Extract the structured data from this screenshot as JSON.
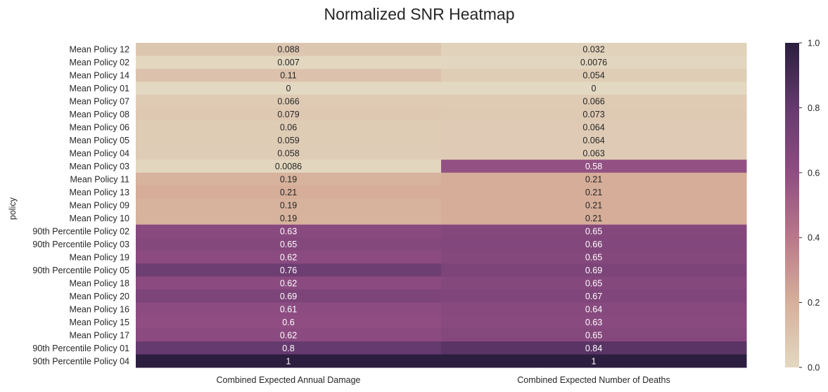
{
  "chart_data": {
    "type": "heatmap",
    "title": "Normalized SNR Heatmap",
    "xlabel": "",
    "ylabel": "policy",
    "columns": [
      "Combined Expected Annual Damage",
      "Combined Expected Number of Deaths"
    ],
    "rows": [
      "Mean Policy 12",
      "Mean Policy 02",
      "Mean Policy 14",
      "Mean Policy 01",
      "Mean Policy 07",
      "Mean Policy 08",
      "Mean Policy 06",
      "Mean Policy 05",
      "Mean Policy 04",
      "Mean Policy 03",
      "Mean Policy 11",
      "Mean Policy 13",
      "Mean Policy 09",
      "Mean Policy 10",
      "90th Percentile Policy 02",
      "90th Percentile Policy 03",
      "Mean Policy 19",
      "90th Percentile Policy 05",
      "Mean Policy 18",
      "Mean Policy 20",
      "Mean Policy 16",
      "Mean Policy 15",
      "Mean Policy 17",
      "90th Percentile Policy 01",
      "90th Percentile Policy 04"
    ],
    "values": [
      [
        0.088,
        0.032
      ],
      [
        0.007,
        0.0076
      ],
      [
        0.11,
        0.054
      ],
      [
        0,
        0
      ],
      [
        0.066,
        0.066
      ],
      [
        0.079,
        0.073
      ],
      [
        0.06,
        0.064
      ],
      [
        0.059,
        0.064
      ],
      [
        0.058,
        0.063
      ],
      [
        0.0086,
        0.58
      ],
      [
        0.19,
        0.21
      ],
      [
        0.21,
        0.21
      ],
      [
        0.19,
        0.21
      ],
      [
        0.19,
        0.21
      ],
      [
        0.63,
        0.65
      ],
      [
        0.65,
        0.66
      ],
      [
        0.62,
        0.65
      ],
      [
        0.76,
        0.69
      ],
      [
        0.62,
        0.65
      ],
      [
        0.69,
        0.67
      ],
      [
        0.61,
        0.64
      ],
      [
        0.6,
        0.63
      ],
      [
        0.62,
        0.65
      ],
      [
        0.8,
        0.84
      ],
      [
        1,
        1
      ]
    ],
    "value_labels": [
      [
        "0.088",
        "0.032"
      ],
      [
        "0.007",
        "0.0076"
      ],
      [
        "0.11",
        "0.054"
      ],
      [
        "0",
        "0"
      ],
      [
        "0.066",
        "0.066"
      ],
      [
        "0.079",
        "0.073"
      ],
      [
        "0.06",
        "0.064"
      ],
      [
        "0.059",
        "0.064"
      ],
      [
        "0.058",
        "0.063"
      ],
      [
        "0.0086",
        "0.58"
      ],
      [
        "0.19",
        "0.21"
      ],
      [
        "0.21",
        "0.21"
      ],
      [
        "0.19",
        "0.21"
      ],
      [
        "0.19",
        "0.21"
      ],
      [
        "0.63",
        "0.65"
      ],
      [
        "0.65",
        "0.66"
      ],
      [
        "0.62",
        "0.65"
      ],
      [
        "0.76",
        "0.69"
      ],
      [
        "0.62",
        "0.65"
      ],
      [
        "0.69",
        "0.67"
      ],
      [
        "0.61",
        "0.64"
      ],
      [
        "0.6",
        "0.63"
      ],
      [
        "0.62",
        "0.65"
      ],
      [
        "0.8",
        "0.84"
      ],
      [
        "1",
        "1"
      ]
    ],
    "colorbar": {
      "range": [
        0,
        1
      ],
      "ticks": [
        0.0,
        0.2,
        0.4,
        0.6,
        0.8,
        1.0
      ],
      "tick_labels": [
        "0.0",
        "0.2",
        "0.4",
        "0.6",
        "0.8",
        "1.0"
      ],
      "colormap_stops": [
        "#e3d8c1",
        "#d6b09a",
        "#b9788a",
        "#8f4d82",
        "#653a6e",
        "#2b1e3f"
      ]
    },
    "grid": false
  }
}
